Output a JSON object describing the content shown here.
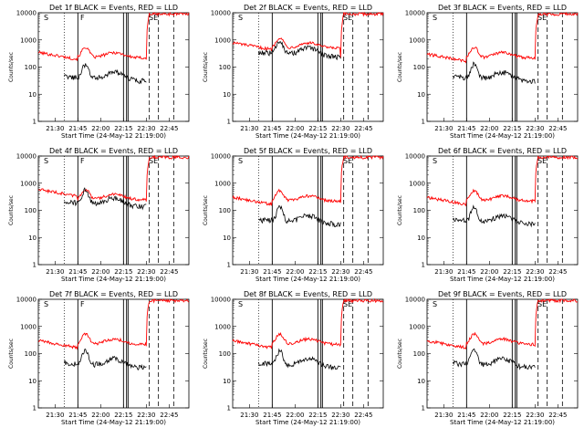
{
  "chart_data": [
    {
      "type": "line",
      "title": "Det 1f BLACK = Events, RED = LLD",
      "flags": [
        "S",
        "F",
        "SE"
      ]
    },
    {
      "type": "line",
      "title": "Det 2f BLACK = Events, RED = LLD",
      "flags": [
        "S",
        "SE"
      ]
    },
    {
      "type": "line",
      "title": "Det 3f BLACK = Events, RED = LLD",
      "flags": [
        "S",
        "SE"
      ]
    },
    {
      "type": "line",
      "title": "Det 4f BLACK = Events, RED = LLD",
      "flags": [
        "S",
        "F",
        "SE"
      ]
    },
    {
      "type": "line",
      "title": "Det 5f BLACK = Events, RED = LLD",
      "flags": [
        "S",
        "SE"
      ]
    },
    {
      "type": "line",
      "title": "Det 6f BLACK = Events, RED = LLD",
      "flags": [
        "S",
        "SE"
      ]
    },
    {
      "type": "line",
      "title": "Det 7f BLACK = Events, RED = LLD",
      "flags": [
        "S",
        "F"
      ]
    },
    {
      "type": "line",
      "title": "Det 8f BLACK = Events, RED = LLD",
      "flags": [
        "S",
        "SE"
      ]
    },
    {
      "type": "line",
      "title": "Det 9f BLACK = Events, RED = LLD",
      "flags": [
        "S",
        "SE"
      ]
    }
  ],
  "shared": {
    "xlabel": "Start Time (24-May-12 21:19:00)",
    "ylabel": "Counts/sec",
    "x_ticks": [
      "21:30",
      "21:45",
      "22:00",
      "22:15",
      "22:30",
      "22:45"
    ],
    "x_tick_minutes": [
      11,
      26,
      41,
      56,
      71,
      86
    ],
    "xlim_minutes": [
      0,
      99
    ],
    "y_ticks": [
      "1",
      "10",
      "100",
      "1000",
      "10000"
    ],
    "ylim": [
      1,
      10000
    ],
    "yscale": "log",
    "series": [
      {
        "name": "Events",
        "color": "#000000"
      },
      {
        "name": "LLD",
        "color": "#ff0000"
      }
    ],
    "dotted_lines_minutes": [
      17,
      100
    ],
    "solid_lines_minutes": [
      26,
      56,
      58,
      59
    ],
    "dashed_lines_minutes": [
      73,
      79,
      89
    ]
  }
}
